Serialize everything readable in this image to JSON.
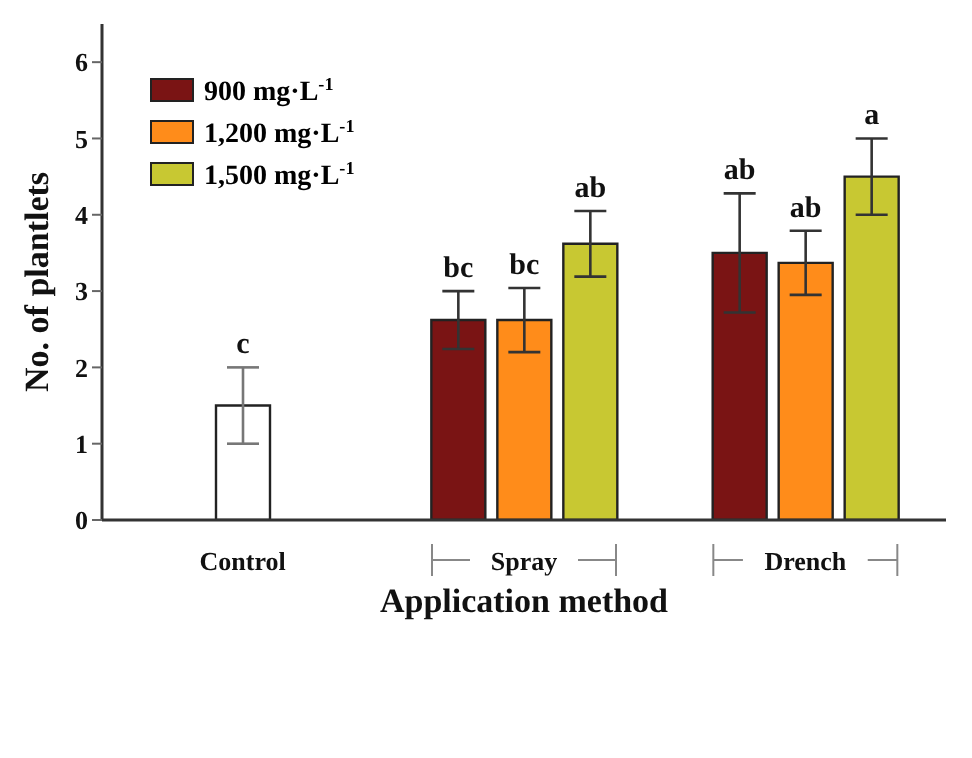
{
  "chart_data": {
    "type": "bar",
    "xlabel": "Application method",
    "ylabel": "No. of plantlets",
    "categories": [
      "Control",
      "Spray",
      "Drench"
    ],
    "series": [
      {
        "color": "#ffffff",
        "values": [
          1.5,
          null,
          null
        ],
        "errors": [
          0.5,
          null,
          null
        ],
        "value_labels": [
          "c",
          null,
          null
        ]
      },
      {
        "name": "900 mg·L$^{-1}$",
        "color": "#7a1414",
        "values": [
          null,
          2.62,
          3.5
        ],
        "errors": [
          null,
          0.38,
          0.78
        ],
        "value_labels": [
          null,
          "bc",
          "ab"
        ]
      },
      {
        "name": "1,200 mg·L$^{-1}$",
        "color": "#ff8c1a",
        "values": [
          null,
          2.62,
          3.37
        ],
        "errors": [
          null,
          0.42,
          0.42
        ],
        "value_labels": [
          null,
          "bc",
          "ab"
        ]
      },
      {
        "name": "1,500 mg·L$^{-1}$",
        "color": "#c8c832",
        "values": [
          null,
          3.62,
          4.5
        ],
        "errors": [
          null,
          0.43,
          0.5
        ],
        "value_labels": [
          null,
          "ab",
          "a"
        ]
      }
    ],
    "ylim": [
      0,
      6.5
    ],
    "yticks": [
      0,
      1,
      2,
      3,
      4,
      5,
      6
    ],
    "grid": false,
    "legend": "top left"
  }
}
